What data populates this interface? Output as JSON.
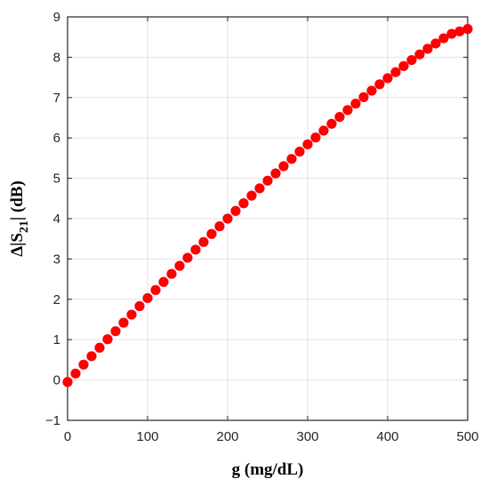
{
  "chart_data": {
    "type": "scatter",
    "xlabel": "g (mg/dL)",
    "ylabel": {
      "prefix": "Δ|S",
      "subscript": "21",
      "suffix": "| (dB)"
    },
    "xlim": [
      0,
      500
    ],
    "ylim": [
      -1,
      9
    ],
    "xticks": [
      "0",
      "100",
      "200",
      "300",
      "400",
      "500"
    ],
    "yticks": [
      "−1",
      "0",
      "1",
      "2",
      "3",
      "4",
      "5",
      "6",
      "7",
      "8",
      "9"
    ],
    "grid": true,
    "series": [
      {
        "color": "#ff0000",
        "marker": "circle",
        "x": [
          0,
          10,
          20,
          30,
          40,
          50,
          60,
          70,
          80,
          90,
          100,
          110,
          120,
          130,
          140,
          150,
          160,
          170,
          180,
          190,
          200,
          210,
          220,
          230,
          240,
          250,
          260,
          270,
          280,
          290,
          300,
          310,
          320,
          330,
          340,
          350,
          360,
          370,
          380,
          390,
          400,
          410,
          420,
          430,
          440,
          450,
          460,
          470,
          480,
          490,
          500
        ],
        "y": [
          -0.05,
          0.16,
          0.38,
          0.59,
          0.8,
          1.01,
          1.21,
          1.42,
          1.62,
          1.83,
          2.03,
          2.23,
          2.43,
          2.63,
          2.83,
          3.03,
          3.23,
          3.42,
          3.62,
          3.81,
          4.0,
          4.19,
          4.38,
          4.57,
          4.75,
          4.94,
          5.12,
          5.3,
          5.48,
          5.66,
          5.84,
          6.01,
          6.18,
          6.35,
          6.52,
          6.69,
          6.85,
          7.01,
          7.17,
          7.33,
          7.48,
          7.63,
          7.78,
          7.93,
          8.07,
          8.21,
          8.34,
          8.47,
          8.58,
          8.64,
          8.7
        ]
      }
    ]
  }
}
